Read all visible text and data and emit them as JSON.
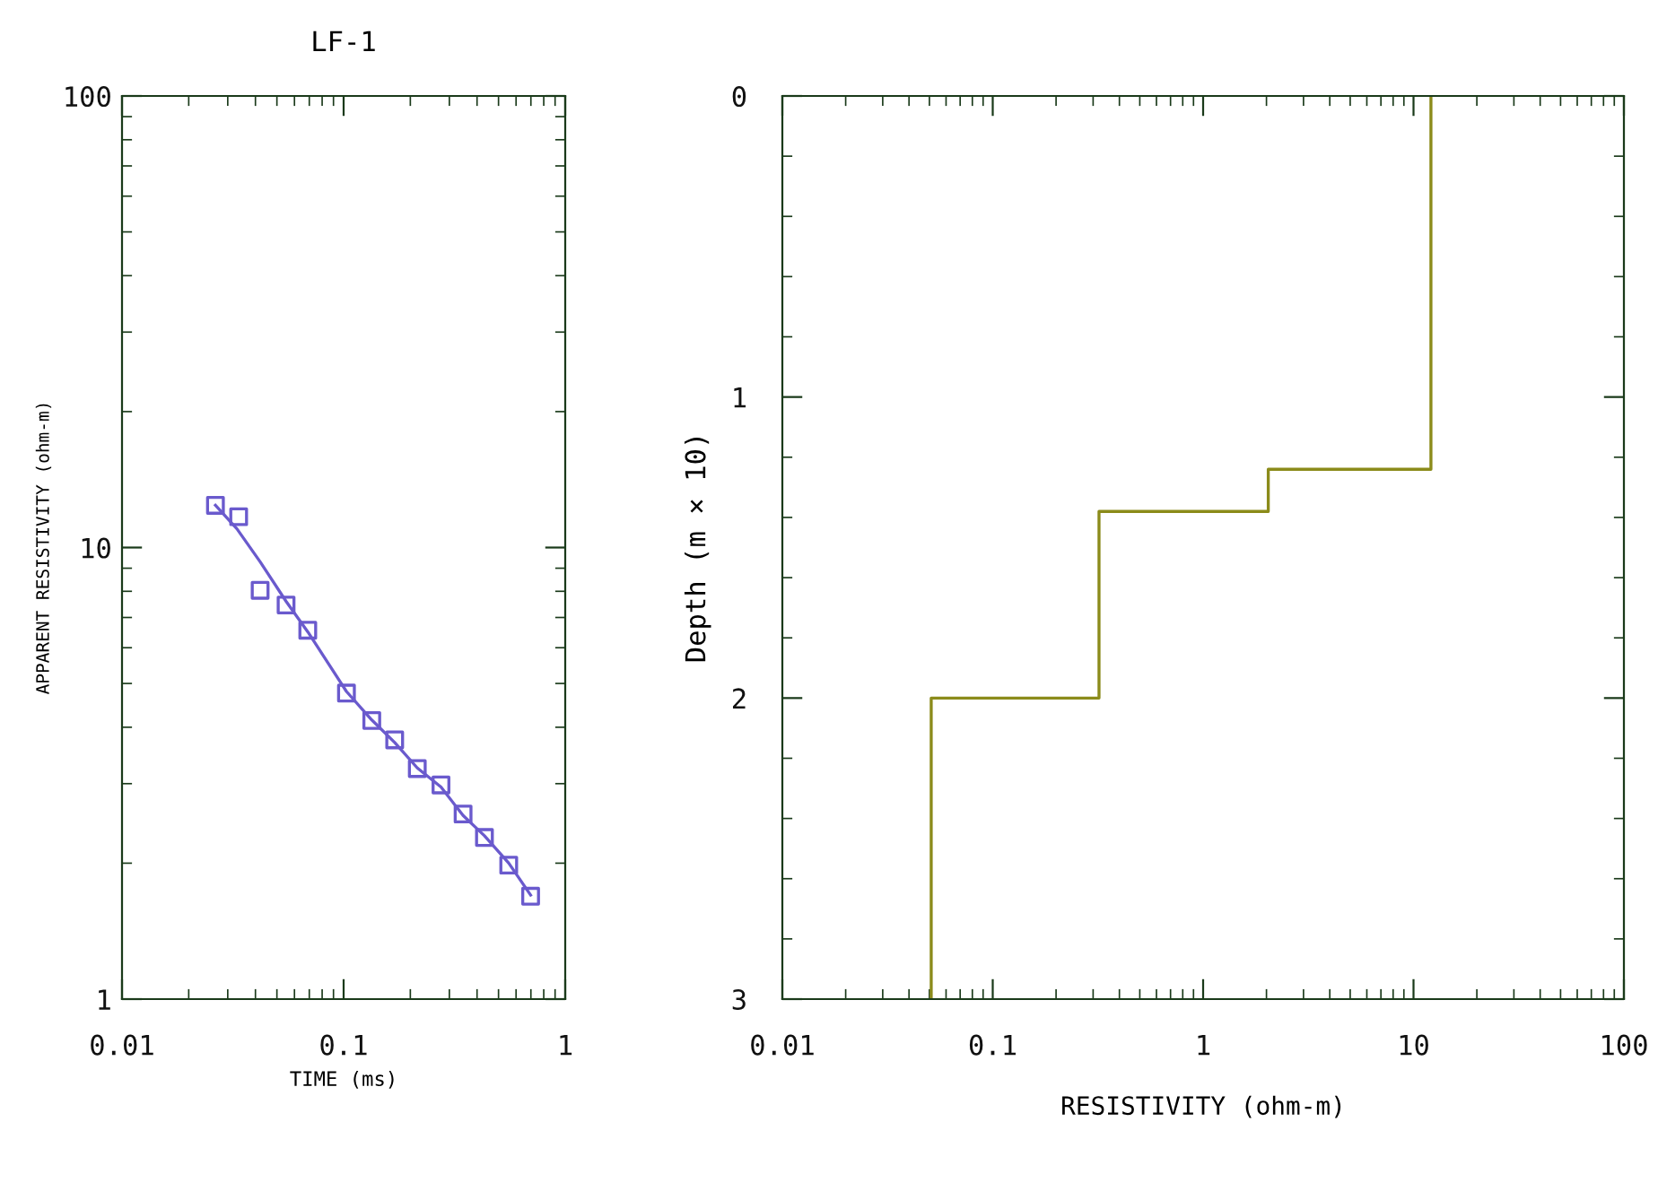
{
  "chart_data": [
    {
      "type": "scatter",
      "title": "LF-1",
      "xlabel": "TIME (ms)",
      "ylabel": "APPARENT RESISTIVITY (ohm-m)",
      "log": "xy",
      "xlim": [
        0.01,
        1
      ],
      "ylim": [
        1,
        100
      ],
      "xticks": [
        0.01,
        0.1,
        1
      ],
      "yticks": [
        1,
        10,
        100
      ],
      "grid": false,
      "legend": false,
      "series": [
        {
          "marker": "square",
          "color": "#6a5acd",
          "x": [
            0.0264,
            0.0336,
            0.042,
            0.055,
            0.0689,
            0.103,
            0.134,
            0.17,
            0.215,
            0.275,
            0.346,
            0.432,
            0.556,
            0.698
          ],
          "values": [
            12.4,
            11.7,
            8.04,
            7.46,
            6.56,
            4.76,
            4.14,
            3.75,
            3.24,
            2.98,
            2.57,
            2.28,
            1.98,
            1.69
          ]
        },
        {
          "type": "line",
          "marker": "none",
          "color": "#6a5acd",
          "x": [
            0.0264,
            0.033,
            0.042,
            0.055,
            0.069,
            0.103,
            0.134,
            0.17,
            0.215,
            0.275,
            0.346,
            0.432,
            0.556,
            0.698
          ],
          "values": [
            12.4,
            11.0,
            9.3,
            7.6,
            6.5,
            4.8,
            4.15,
            3.7,
            3.25,
            2.95,
            2.55,
            2.3,
            2.0,
            1.7
          ]
        }
      ]
    },
    {
      "type": "line",
      "xlabel": "RESISTIVITY (ohm-m)",
      "ylabel": "Depth (m × 10)",
      "log": "x",
      "xlim": [
        0.01,
        100
      ],
      "ylim": [
        3,
        0
      ],
      "xticks": [
        0.01,
        0.1,
        1,
        10,
        100
      ],
      "yticks": [
        0,
        1,
        2,
        3
      ],
      "grid": false,
      "legend": false,
      "series": [
        {
          "marker": "none",
          "color": "#8b8b1a",
          "x": [
            12.1,
            12.1,
            2.04,
            2.04,
            0.32,
            0.32,
            0.051,
            0.051
          ],
          "values": [
            0,
            1.24,
            1.24,
            1.38,
            1.38,
            2.0,
            2.0,
            3.0
          ]
        }
      ]
    }
  ]
}
